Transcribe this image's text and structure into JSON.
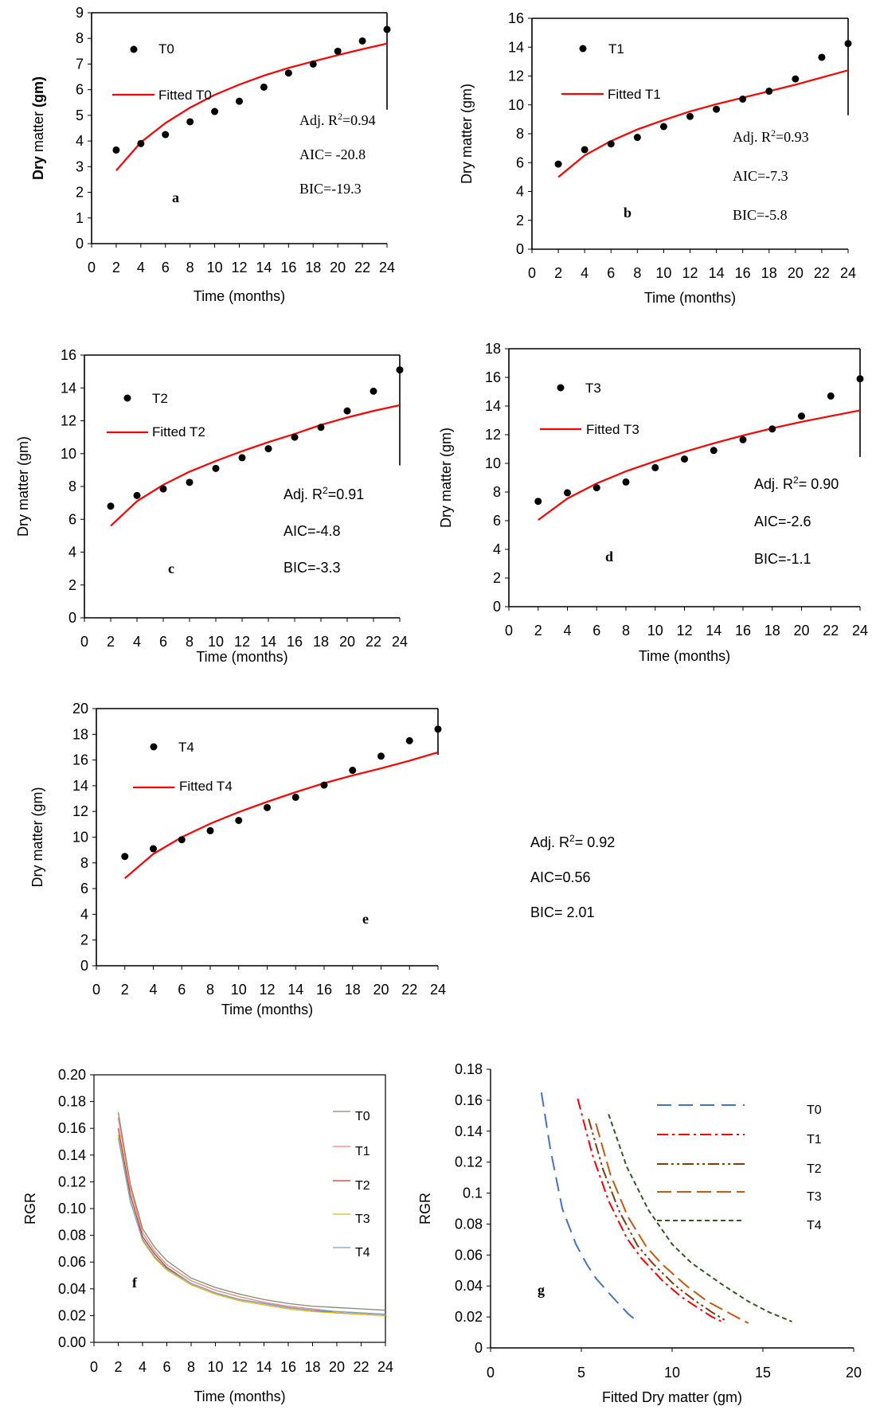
{
  "chart_data": [
    {
      "id": "a",
      "type": "scatter",
      "panel_label": "a",
      "xlabel": "Time (months)",
      "ylabel_parts": [
        [
          "Dry",
          true
        ],
        [
          " matter ",
          false
        ],
        [
          "(gm)",
          true
        ]
      ],
      "xlim": [
        0,
        24
      ],
      "ylim": [
        0,
        9
      ],
      "xticks": [
        0,
        2,
        4,
        6,
        8,
        10,
        12,
        14,
        16,
        18,
        20,
        22,
        24
      ],
      "yticks": [
        0,
        1,
        2,
        3,
        4,
        5,
        6,
        7,
        8,
        9
      ],
      "legend_marker_label": "T0",
      "legend_line_label": "Fitted T0",
      "stats": [
        "Adj. R|2|=0.94",
        "AIC= -20.8",
        "BIC=-19.3"
      ],
      "observed": {
        "x": [
          2,
          4,
          6,
          8,
          10,
          12,
          14,
          16,
          18,
          20,
          22,
          24
        ],
        "y": [
          3.65,
          3.9,
          4.25,
          4.75,
          5.15,
          5.55,
          6.1,
          6.65,
          7.0,
          7.5,
          7.9,
          8.35
        ]
      },
      "fitted": {
        "x": [
          2,
          4,
          6,
          8,
          10,
          12,
          14,
          16,
          18,
          20,
          22,
          24
        ],
        "y": [
          2.85,
          3.95,
          4.7,
          5.3,
          5.8,
          6.2,
          6.55,
          6.85,
          7.1,
          7.35,
          7.58,
          7.8
        ]
      }
    },
    {
      "id": "b",
      "type": "scatter",
      "panel_label": "b",
      "xlabel": "Time (months)",
      "ylabel_parts": [
        [
          "Dry matter (gm)",
          false
        ]
      ],
      "xlim": [
        0,
        24
      ],
      "ylim": [
        0,
        16
      ],
      "xticks": [
        0,
        2,
        4,
        6,
        8,
        10,
        12,
        14,
        16,
        18,
        20,
        22,
        24
      ],
      "yticks": [
        0,
        2,
        4,
        6,
        8,
        10,
        12,
        14,
        16
      ],
      "legend_marker_label": "T1",
      "legend_line_label": "Fitted T1",
      "stats": [
        "Adj. R|2|=0.93",
        "AIC=-7.3",
        "BIC=-5.8"
      ],
      "observed": {
        "x": [
          2,
          4,
          6,
          8,
          10,
          12,
          14,
          16,
          18,
          20,
          22,
          24
        ],
        "y": [
          5.9,
          6.9,
          7.3,
          7.75,
          8.5,
          9.2,
          9.7,
          10.4,
          10.95,
          11.8,
          13.3,
          14.25
        ]
      },
      "fitted": {
        "x": [
          2,
          4,
          6,
          8,
          10,
          12,
          14,
          16,
          18,
          20,
          22,
          24
        ],
        "y": [
          5.0,
          6.5,
          7.5,
          8.3,
          8.95,
          9.55,
          10.05,
          10.5,
          10.95,
          11.4,
          11.9,
          12.4
        ]
      }
    },
    {
      "id": "c",
      "type": "scatter",
      "panel_label": "c",
      "xlabel": "Time (months)",
      "ylabel_parts": [
        [
          "Dry matter (gm)",
          false
        ]
      ],
      "xlim": [
        0,
        24
      ],
      "ylim": [
        0,
        16
      ],
      "xticks": [
        0,
        2,
        4,
        6,
        8,
        10,
        12,
        14,
        16,
        18,
        20,
        22,
        24
      ],
      "yticks": [
        0,
        2,
        4,
        6,
        8,
        10,
        12,
        14,
        16
      ],
      "legend_marker_label": "T2",
      "legend_line_label": "Fitted T2",
      "stats": [
        "Adj. R|2|=0.91",
        "AIC=-4.8",
        "BIC=-3.3"
      ],
      "observed": {
        "x": [
          2,
          4,
          6,
          8,
          10,
          12,
          14,
          16,
          18,
          20,
          22,
          24
        ],
        "y": [
          6.8,
          7.45,
          7.85,
          8.25,
          9.1,
          9.75,
          10.3,
          11.0,
          11.6,
          12.6,
          13.8,
          15.1
        ]
      },
      "fitted": {
        "x": [
          2,
          4,
          6,
          8,
          10,
          12,
          14,
          16,
          18,
          20,
          22,
          24
        ],
        "y": [
          5.6,
          7.1,
          8.1,
          8.9,
          9.55,
          10.15,
          10.7,
          11.2,
          11.75,
          12.2,
          12.6,
          12.95
        ]
      }
    },
    {
      "id": "d",
      "type": "scatter",
      "panel_label": "d",
      "xlabel": "Time (months)",
      "ylabel_parts": [
        [
          "Dry matter (gm)",
          false
        ]
      ],
      "xlim": [
        0,
        24
      ],
      "ylim": [
        0,
        18
      ],
      "xticks": [
        0,
        2,
        4,
        6,
        8,
        10,
        12,
        14,
        16,
        18,
        20,
        22,
        24
      ],
      "yticks": [
        0,
        2,
        4,
        6,
        8,
        10,
        12,
        14,
        16,
        18
      ],
      "legend_marker_label": "T3",
      "legend_line_label": "Fitted T3",
      "stats": [
        "Adj. R|2|= 0.90",
        "AIC=-2.6",
        "BIC=-1.1"
      ],
      "observed": {
        "x": [
          2,
          4,
          6,
          8,
          10,
          12,
          14,
          16,
          18,
          20,
          22,
          24
        ],
        "y": [
          7.35,
          7.95,
          8.3,
          8.7,
          9.7,
          10.3,
          10.9,
          11.65,
          12.4,
          13.3,
          14.7,
          15.9
        ]
      },
      "fitted": {
        "x": [
          2,
          4,
          6,
          8,
          10,
          12,
          14,
          16,
          18,
          20,
          22,
          24
        ],
        "y": [
          6.05,
          7.55,
          8.6,
          9.45,
          10.15,
          10.8,
          11.4,
          11.95,
          12.45,
          12.9,
          13.3,
          13.7
        ]
      }
    },
    {
      "id": "e",
      "type": "scatter",
      "panel_label": "e",
      "xlabel": "Time (months)",
      "ylabel_parts": [
        [
          "Dry matter (gm)",
          false
        ]
      ],
      "xlim": [
        0,
        24
      ],
      "ylim": [
        0,
        20
      ],
      "xticks": [
        0,
        2,
        4,
        6,
        8,
        10,
        12,
        14,
        16,
        18,
        20,
        22,
        24
      ],
      "yticks": [
        0,
        2,
        4,
        6,
        8,
        10,
        12,
        14,
        16,
        18,
        20
      ],
      "legend_marker_label": "T4",
      "legend_line_label": "Fitted T4",
      "stats": [
        "Adj. R|2|= 0.92",
        "AIC=0.56",
        "BIC= 2.01"
      ],
      "observed": {
        "x": [
          2,
          4,
          6,
          8,
          10,
          12,
          14,
          16,
          18,
          20,
          22,
          24
        ],
        "y": [
          8.5,
          9.1,
          9.8,
          10.5,
          11.3,
          12.3,
          13.1,
          14.05,
          15.2,
          16.3,
          17.5,
          18.4
        ]
      },
      "fitted": {
        "x": [
          2,
          4,
          6,
          8,
          10,
          12,
          14,
          16,
          18,
          20,
          22,
          24
        ],
        "y": [
          6.8,
          8.7,
          10.0,
          11.05,
          11.95,
          12.75,
          13.5,
          14.2,
          14.8,
          15.35,
          15.95,
          16.6
        ]
      }
    },
    {
      "id": "f",
      "type": "line",
      "panel_label": "f",
      "xlabel": "Time (months)",
      "ylabel": "RGR",
      "xlim": [
        0,
        24
      ],
      "ylim": [
        0,
        0.2
      ],
      "xticks": [
        0,
        2,
        4,
        6,
        8,
        10,
        12,
        14,
        16,
        18,
        20,
        22,
        24
      ],
      "yticks": [
        "0.00",
        "0.02",
        "0.04",
        "0.06",
        "0.08",
        "0.10",
        "0.12",
        "0.14",
        "0.16",
        "0.18",
        "0.20"
      ],
      "x": [
        2,
        3,
        4,
        5,
        6,
        8,
        10,
        12,
        14,
        16,
        18,
        20,
        22,
        24
      ],
      "series": [
        {
          "name": "T0",
          "color": "#7f8c6e",
          "values": [
            0.172,
            0.118,
            0.085,
            0.071,
            0.061,
            0.048,
            0.041,
            0.036,
            0.032,
            0.029,
            0.027,
            0.026,
            0.025,
            0.024
          ]
        },
        {
          "name": "T1",
          "color": "#f08080",
          "values": [
            0.168,
            0.115,
            0.082,
            0.068,
            0.058,
            0.046,
            0.039,
            0.034,
            0.03,
            0.027,
            0.025,
            0.023,
            0.022,
            0.021
          ]
        },
        {
          "name": "T2",
          "color": "#c0392b",
          "values": [
            0.16,
            0.11,
            0.079,
            0.066,
            0.056,
            0.044,
            0.037,
            0.032,
            0.029,
            0.026,
            0.024,
            0.022,
            0.021,
            0.02
          ]
        },
        {
          "name": "T3",
          "color": "#e6b800",
          "values": [
            0.155,
            0.106,
            0.076,
            0.063,
            0.054,
            0.043,
            0.036,
            0.031,
            0.028,
            0.025,
            0.023,
            0.022,
            0.021,
            0.02
          ]
        },
        {
          "name": "T4",
          "color": "#6fa0d8",
          "values": [
            0.153,
            0.105,
            0.077,
            0.064,
            0.055,
            0.044,
            0.037,
            0.032,
            0.029,
            0.026,
            0.024,
            0.023,
            0.022,
            0.021
          ]
        }
      ]
    },
    {
      "id": "g",
      "type": "line",
      "panel_label": "g",
      "xlabel": "Fitted Dry matter (gm)",
      "ylabel": "RGR",
      "xlim": [
        0,
        20
      ],
      "ylim": [
        0,
        0.18
      ],
      "xticks": [
        0,
        5,
        10,
        15,
        20
      ],
      "yticks": [
        "0",
        "0.02",
        "0.04",
        "0.06",
        "0.08",
        "0.1",
        "0.12",
        "0.14",
        "0.16",
        "0.18"
      ],
      "series": [
        {
          "name": "T0",
          "color": "#4472c4",
          "dash": "18,9",
          "x": [
            2.8,
            3.3,
            3.95,
            4.7,
            5.3,
            5.8,
            6.55,
            7.1,
            7.58,
            8.1
          ],
          "y": [
            0.165,
            0.128,
            0.09,
            0.067,
            0.054,
            0.045,
            0.035,
            0.028,
            0.022,
            0.017
          ]
        },
        {
          "name": "T1",
          "color": "#ff0000",
          "dash": "14,5,3,5",
          "x": [
            4.8,
            5.6,
            6.5,
            7.5,
            8.3,
            9.5,
            10.5,
            11.4,
            12.2,
            12.9
          ],
          "y": [
            0.161,
            0.125,
            0.095,
            0.071,
            0.058,
            0.043,
            0.033,
            0.026,
            0.02,
            0.016
          ]
        },
        {
          "name": "T2",
          "color": "#843c0c",
          "dash": "14,4,3,4,3,4",
          "x": [
            5.4,
            6.2,
            7.1,
            8.1,
            8.9,
            10.1,
            11.2,
            12.2,
            12.9
          ],
          "y": [
            0.148,
            0.115,
            0.088,
            0.066,
            0.055,
            0.041,
            0.031,
            0.023,
            0.018
          ]
        },
        {
          "name": "T3",
          "color": "#c55a11",
          "dash": "18,7",
          "x": [
            5.8,
            6.6,
            7.55,
            8.6,
            9.45,
            10.8,
            11.95,
            12.9,
            13.7,
            14.2
          ],
          "y": [
            0.145,
            0.112,
            0.085,
            0.065,
            0.054,
            0.04,
            0.03,
            0.024,
            0.019,
            0.016
          ]
        },
        {
          "name": "T4",
          "color": "#375623",
          "dash": "6,4",
          "x": [
            6.5,
            7.5,
            8.7,
            10.0,
            11.05,
            12.75,
            14.2,
            15.35,
            16.6
          ],
          "y": [
            0.151,
            0.117,
            0.089,
            0.067,
            0.055,
            0.041,
            0.03,
            0.023,
            0.017
          ]
        }
      ]
    }
  ]
}
